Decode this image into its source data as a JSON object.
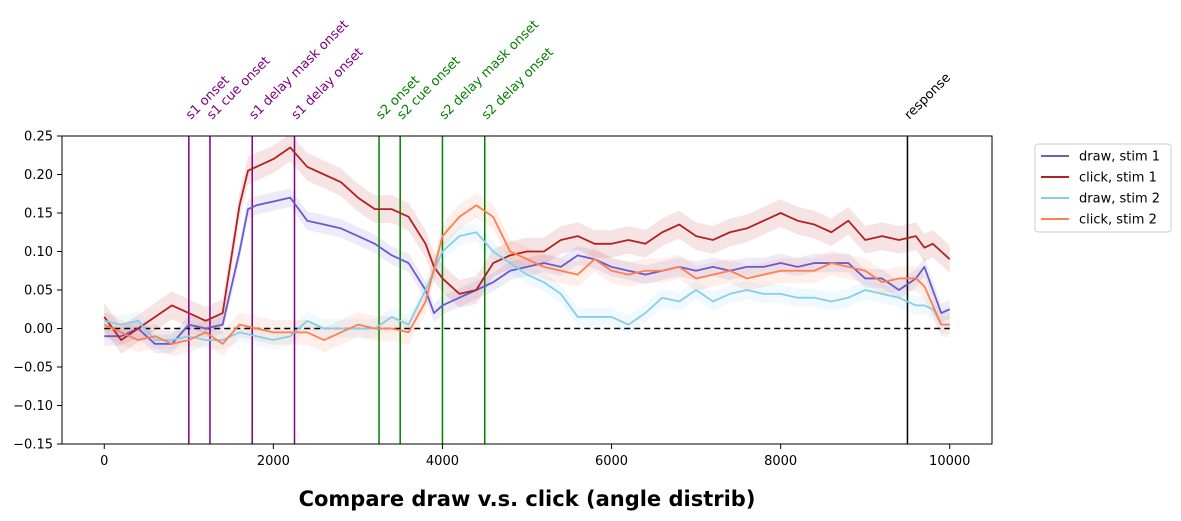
{
  "chart_data": {
    "type": "line",
    "title": "Compare draw v.s. click (angle distrib)",
    "xlabel": "",
    "ylabel": "",
    "xlim": [
      -500,
      10500
    ],
    "ylim": [
      -0.15,
      0.25
    ],
    "xticks": [
      0,
      2000,
      4000,
      6000,
      8000,
      10000
    ],
    "yticks": [
      -0.15,
      -0.1,
      -0.05,
      0.0,
      0.05,
      0.1,
      0.15,
      0.2,
      0.25
    ],
    "ytick_labels": [
      "−0.15",
      "−0.10",
      "−0.05",
      "0.00",
      "0.05",
      "0.10",
      "0.15",
      "0.20",
      "0.25"
    ],
    "grid": false,
    "legend_position": "outside-right",
    "baseline": 0,
    "events": [
      {
        "label": "s1 onset",
        "x": 1000,
        "color": "#800080"
      },
      {
        "label": "s1 cue onset",
        "x": 1250,
        "color": "#800080"
      },
      {
        "label": "s1 delay mask onset",
        "x": 1750,
        "color": "#800080"
      },
      {
        "label": "s1 delay onset",
        "x": 2250,
        "color": "#800080"
      },
      {
        "label": "s2 onset",
        "x": 3250,
        "color": "#008000"
      },
      {
        "label": "s2 cue onset",
        "x": 3500,
        "color": "#008000"
      },
      {
        "label": "s2 delay mask onset",
        "x": 4000,
        "color": "#008000"
      },
      {
        "label": "s2 delay onset",
        "x": 4500,
        "color": "#008000"
      },
      {
        "label": "response",
        "x": 9500,
        "color": "#000000"
      }
    ],
    "series": [
      {
        "name": "draw, stim 1",
        "color": "#6a5acd",
        "x": [
          0,
          200,
          400,
          600,
          800,
          1000,
          1200,
          1400,
          1600,
          1700,
          1800,
          2000,
          2200,
          2400,
          2600,
          2800,
          3000,
          3200,
          3400,
          3600,
          3800,
          3900,
          4000,
          4200,
          4400,
          4600,
          4800,
          5000,
          5200,
          5400,
          5600,
          5800,
          6000,
          6200,
          6400,
          6600,
          6800,
          7000,
          7200,
          7400,
          7600,
          7800,
          8000,
          8200,
          8400,
          8600,
          8800,
          9000,
          9200,
          9400,
          9600,
          9700,
          9800,
          9900,
          10000
        ],
        "values": [
          -0.01,
          -0.01,
          0.0,
          -0.02,
          -0.02,
          0.005,
          0.0,
          0.005,
          0.1,
          0.155,
          0.16,
          0.165,
          0.17,
          0.14,
          0.135,
          0.13,
          0.12,
          0.11,
          0.095,
          0.085,
          0.05,
          0.02,
          0.03,
          0.04,
          0.05,
          0.06,
          0.075,
          0.08,
          0.085,
          0.08,
          0.095,
          0.09,
          0.08,
          0.075,
          0.07,
          0.075,
          0.08,
          0.075,
          0.08,
          0.075,
          0.08,
          0.08,
          0.085,
          0.08,
          0.085,
          0.085,
          0.085,
          0.065,
          0.065,
          0.05,
          0.065,
          0.08,
          0.05,
          0.02,
          0.025
        ],
        "band": 0.012
      },
      {
        "name": "click, stim 1",
        "color": "#b22222",
        "x": [
          0,
          200,
          400,
          600,
          800,
          1000,
          1200,
          1400,
          1600,
          1700,
          1800,
          2000,
          2200,
          2400,
          2600,
          2800,
          3000,
          3200,
          3400,
          3600,
          3800,
          3900,
          4000,
          4200,
          4400,
          4600,
          4800,
          5000,
          5200,
          5400,
          5600,
          5800,
          6000,
          6200,
          6400,
          6600,
          6800,
          7000,
          7200,
          7400,
          7600,
          7800,
          8000,
          8200,
          8400,
          8600,
          8800,
          9000,
          9200,
          9400,
          9600,
          9700,
          9800,
          9900,
          10000
        ],
        "values": [
          0.015,
          -0.015,
          0.0,
          0.015,
          0.03,
          0.02,
          0.01,
          0.02,
          0.16,
          0.205,
          0.21,
          0.22,
          0.235,
          0.21,
          0.2,
          0.19,
          0.17,
          0.155,
          0.155,
          0.145,
          0.11,
          0.08,
          0.065,
          0.045,
          0.05,
          0.085,
          0.095,
          0.1,
          0.1,
          0.115,
          0.12,
          0.11,
          0.11,
          0.115,
          0.11,
          0.125,
          0.135,
          0.12,
          0.115,
          0.125,
          0.13,
          0.14,
          0.15,
          0.14,
          0.135,
          0.125,
          0.14,
          0.115,
          0.12,
          0.115,
          0.12,
          0.105,
          0.11,
          0.1,
          0.09
        ],
        "band": 0.018
      },
      {
        "name": "draw, stim 2",
        "color": "#87ceeb",
        "x": [
          0,
          200,
          400,
          600,
          800,
          1000,
          1200,
          1400,
          1600,
          1800,
          2000,
          2200,
          2400,
          2600,
          2800,
          3000,
          3200,
          3400,
          3600,
          3800,
          4000,
          4200,
          4400,
          4600,
          4800,
          5000,
          5200,
          5400,
          5600,
          5800,
          6000,
          6200,
          6400,
          6600,
          6800,
          7000,
          7200,
          7400,
          7600,
          7800,
          8000,
          8200,
          8400,
          8600,
          8800,
          9000,
          9200,
          9400,
          9600,
          9700,
          9800,
          9900,
          10000
        ],
        "values": [
          0.01,
          0.005,
          0.01,
          -0.015,
          -0.015,
          -0.01,
          -0.015,
          -0.015,
          -0.005,
          -0.01,
          -0.015,
          -0.01,
          0.01,
          0.0,
          0.0,
          0.0,
          0.0,
          0.015,
          0.005,
          0.05,
          0.1,
          0.12,
          0.125,
          0.1,
          0.085,
          0.07,
          0.06,
          0.045,
          0.015,
          0.015,
          0.015,
          0.005,
          0.02,
          0.04,
          0.035,
          0.05,
          0.035,
          0.045,
          0.05,
          0.045,
          0.045,
          0.04,
          0.04,
          0.035,
          0.04,
          0.05,
          0.045,
          0.04,
          0.03,
          0.03,
          0.025,
          0.005,
          0.005
        ],
        "band": 0.012
      },
      {
        "name": "click, stim 2",
        "color": "#ff7f50",
        "x": [
          0,
          200,
          400,
          600,
          800,
          1000,
          1200,
          1400,
          1600,
          1800,
          2000,
          2200,
          2400,
          2600,
          2800,
          3000,
          3200,
          3400,
          3600,
          3800,
          4000,
          4200,
          4400,
          4600,
          4800,
          5000,
          5200,
          5400,
          5600,
          5800,
          6000,
          6200,
          6400,
          6600,
          6800,
          7000,
          7200,
          7400,
          7600,
          7800,
          8000,
          8200,
          8400,
          8600,
          8800,
          9000,
          9200,
          9400,
          9600,
          9700,
          9800,
          9900,
          10000
        ],
        "values": [
          0.005,
          -0.005,
          -0.015,
          -0.01,
          -0.02,
          -0.015,
          -0.005,
          -0.02,
          0.005,
          0.0,
          -0.005,
          -0.005,
          -0.005,
          -0.015,
          -0.005,
          0.005,
          0.0,
          0.0,
          -0.005,
          0.035,
          0.12,
          0.145,
          0.16,
          0.145,
          0.1,
          0.09,
          0.08,
          0.075,
          0.07,
          0.09,
          0.075,
          0.07,
          0.075,
          0.075,
          0.08,
          0.065,
          0.07,
          0.075,
          0.065,
          0.07,
          0.075,
          0.075,
          0.075,
          0.085,
          0.08,
          0.075,
          0.06,
          0.065,
          0.065,
          0.055,
          0.03,
          0.005,
          0.005
        ],
        "band": 0.016
      }
    ]
  }
}
